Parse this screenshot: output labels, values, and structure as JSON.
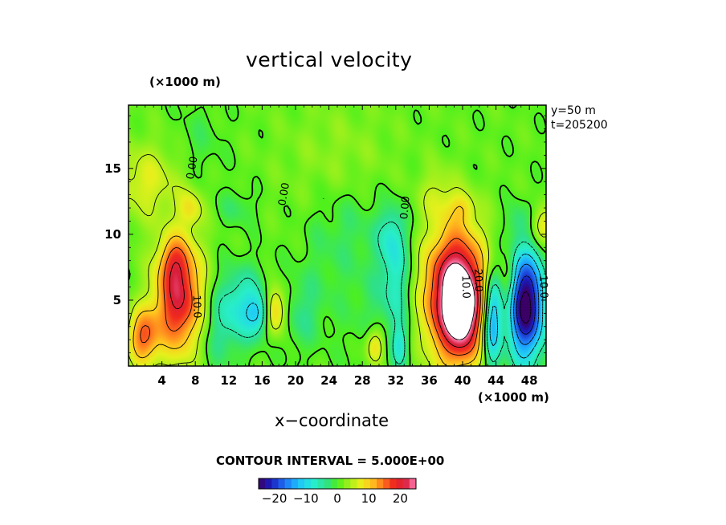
{
  "chart_data": {
    "type": "heatmap",
    "title": "vertical velocity",
    "xlabel": "x−coordinate",
    "x_unit": "(×1000 m)",
    "y_unit": "(×1000 m)",
    "xlim": [
      0,
      50
    ],
    "ylim": [
      0,
      19.8
    ],
    "x_ticks": [
      4,
      8,
      12,
      16,
      20,
      24,
      28,
      32,
      36,
      40,
      44,
      48
    ],
    "y_ticks": [
      5,
      10,
      15
    ],
    "annotations": [
      "y=50  m",
      "t=205200"
    ],
    "contour_interval_text": "CONTOUR INTERVAL = 5.000E+00",
    "contour_labels": [
      {
        "text": "0.00",
        "x": 8,
        "y": 15,
        "rotate": -80
      },
      {
        "text": "0.00",
        "x": 19,
        "y": 13,
        "rotate": -80
      },
      {
        "text": "0.00",
        "x": 33.5,
        "y": 12,
        "rotate": -85
      },
      {
        "text": "10.0",
        "x": 7.8,
        "y": 4.5,
        "rotate": 88
      },
      {
        "text": "10.0",
        "x": 40,
        "y": 6,
        "rotate": 88
      },
      {
        "text": "20.0",
        "x": 41.5,
        "y": 6.5,
        "rotate": 88
      },
      {
        "text": "10.0",
        "x": 49.3,
        "y": 6,
        "rotate": 88
      }
    ],
    "features": [
      {
        "x": 6.0,
        "y": 5.2,
        "sx": 2.0,
        "sy": 3.0,
        "amp": 20
      },
      {
        "x": 5.5,
        "y": 8.0,
        "sx": 1.2,
        "sy": 1.2,
        "amp": 6
      },
      {
        "x": 1.8,
        "y": 2.2,
        "sx": 1.3,
        "sy": 1.5,
        "amp": 14
      },
      {
        "x": 2.0,
        "y": 14.0,
        "sx": 3.0,
        "sy": 2.0,
        "amp": 6
      },
      {
        "x": 7.5,
        "y": 12.0,
        "sx": 1.0,
        "sy": 1.0,
        "amp": 6
      },
      {
        "x": 13.5,
        "y": 4.5,
        "sx": 2.2,
        "sy": 2.0,
        "amp": -9
      },
      {
        "x": 15.8,
        "y": 4.0,
        "sx": 1.0,
        "sy": 1.0,
        "amp": -8
      },
      {
        "x": 17.5,
        "y": 4.2,
        "sx": 1.0,
        "sy": 1.3,
        "amp": 13
      },
      {
        "x": 13.0,
        "y": 12.0,
        "sx": 1.5,
        "sy": 1.0,
        "amp": -3
      },
      {
        "x": 10.5,
        "y": 2.0,
        "sx": 1.5,
        "sy": 2.0,
        "amp": -3
      },
      {
        "x": 20.5,
        "y": 4.0,
        "sx": 2.0,
        "sy": 2.0,
        "amp": -4
      },
      {
        "x": 23.5,
        "y": 9.0,
        "sx": 2.0,
        "sy": 3.0,
        "amp": -2
      },
      {
        "x": 30.0,
        "y": 5.0,
        "sx": 3.0,
        "sy": 4.0,
        "amp": -3
      },
      {
        "x": 31.5,
        "y": 10.0,
        "sx": 1.2,
        "sy": 1.6,
        "amp": -6
      },
      {
        "x": 32.0,
        "y": 6.5,
        "sx": 1.0,
        "sy": 2.5,
        "amp": -6
      },
      {
        "x": 32.5,
        "y": 1.5,
        "sx": 0.7,
        "sy": 1.2,
        "amp": -7
      },
      {
        "x": 29.5,
        "y": 1.5,
        "sx": 0.8,
        "sy": 1.0,
        "amp": 10
      },
      {
        "x": 27.0,
        "y": 11.0,
        "sx": 2.0,
        "sy": 2.0,
        "amp": -2
      },
      {
        "x": 39.2,
        "y": 5.3,
        "sx": 2.5,
        "sy": 3.4,
        "amp": 30
      },
      {
        "x": 40.0,
        "y": 4.0,
        "sx": 1.2,
        "sy": 2.0,
        "amp": 10
      },
      {
        "x": 37.0,
        "y": 13.0,
        "sx": 1.5,
        "sy": 1.5,
        "amp": 4
      },
      {
        "x": 43.5,
        "y": 3.5,
        "sx": 0.8,
        "sy": 2.5,
        "amp": -17
      },
      {
        "x": 47.5,
        "y": 4.6,
        "sx": 1.6,
        "sy": 2.8,
        "amp": -28
      },
      {
        "x": 45.5,
        "y": 6.0,
        "sx": 0.7,
        "sy": 2.0,
        "amp": 6
      },
      {
        "x": 49.5,
        "y": 10.5,
        "sx": 1.0,
        "sy": 1.0,
        "amp": 8
      },
      {
        "x": 46.5,
        "y": 11.0,
        "sx": 1.0,
        "sy": 1.0,
        "amp": -3
      },
      {
        "x": 40.0,
        "y": 12.0,
        "sx": 1.0,
        "sy": 0.8,
        "amp": 5
      },
      {
        "x": 25.0,
        "y": 16.0,
        "sx": 5.0,
        "sy": 3.0,
        "amp": 2
      },
      {
        "x": 8.5,
        "y": 17.0,
        "sx": 2.0,
        "sy": 2.0,
        "amp": -2
      }
    ],
    "colorbar": {
      "min": -25,
      "max": 25,
      "labels": [
        -20,
        -10,
        0,
        10,
        20
      ],
      "label_texts": [
        "−20",
        "−10",
        "0",
        "10",
        "20"
      ]
    },
    "colormap": [
      "#3a0066",
      "#1a1ab8",
      "#1e5ae6",
      "#1ea0ff",
      "#22d4f2",
      "#28eec8",
      "#2ee08a",
      "#4ef01c",
      "#9ef01c",
      "#e6f01c",
      "#ffc81e",
      "#ff7a1e",
      "#f02a1e",
      "#d81e3c",
      "#ff80b4"
    ],
    "grid": false,
    "legend": "colorbar below plot"
  }
}
